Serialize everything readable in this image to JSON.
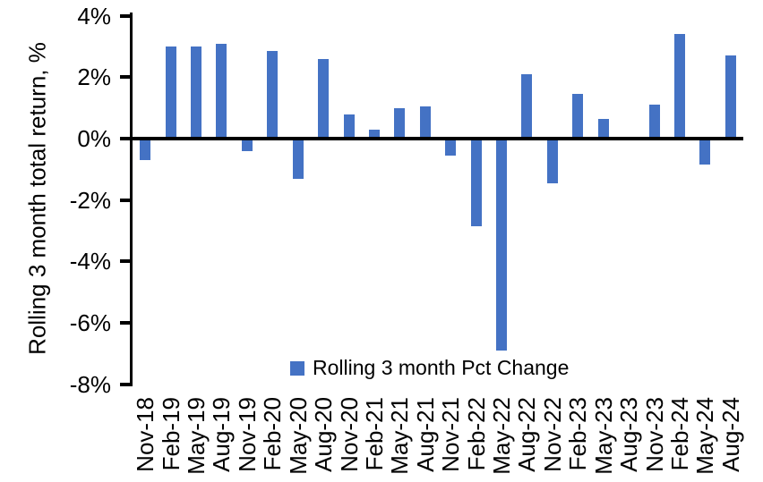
{
  "chart_data": {
    "type": "bar",
    "title": "",
    "xlabel": "",
    "ylabel": "Rolling 3 month total return, %",
    "categories": [
      "Nov-18",
      "Feb-19",
      "May-19",
      "Aug-19",
      "Nov-19",
      "Feb-20",
      "May-20",
      "Aug-20",
      "Nov-20",
      "Feb-21",
      "May-21",
      "Aug-21",
      "Nov-21",
      "Feb-22",
      "May-22",
      "Aug-22",
      "Nov-22",
      "Feb-23",
      "May-23",
      "Aug-23",
      "Nov-23",
      "Feb-24",
      "May-24",
      "Aug-24"
    ],
    "values": [
      -0.7,
      3.0,
      3.0,
      3.1,
      -0.4,
      2.85,
      -1.3,
      2.6,
      0.8,
      0.3,
      1.0,
      1.05,
      -0.55,
      -2.85,
      -6.9,
      2.1,
      -1.45,
      1.45,
      0.65,
      0.0,
      1.1,
      3.4,
      -0.85,
      2.7
    ],
    "ylim": [
      -8,
      4
    ],
    "yticks": [
      4,
      2,
      0,
      -2,
      -4,
      -6,
      -8
    ],
    "ytick_labels": [
      "4%",
      "2%",
      "0%",
      "-2%",
      "-4%",
      "-6%",
      "-8%"
    ],
    "grid": false,
    "legend": {
      "label": "Rolling 3 month Pct Change",
      "position": "bottom-center-inside"
    },
    "colors": {
      "bar": "#4472C4",
      "axis": "#000000",
      "text": "#000000",
      "background": "#ffffff"
    }
  }
}
